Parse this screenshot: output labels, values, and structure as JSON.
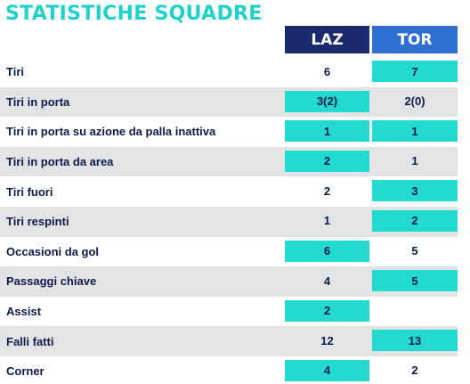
{
  "title": "STATISTICHE SQUADRE",
  "teams": {
    "home": {
      "label": "LAZ",
      "color": "#1a2a6c"
    },
    "away": {
      "label": "TOR",
      "color": "#2f6fd1"
    }
  },
  "highlight_color": "#22dad0",
  "rows": [
    {
      "label": "Tiri",
      "home": "6",
      "away": "7",
      "winner": "away"
    },
    {
      "label": "Tiri in porta",
      "home": "3(2)",
      "away": "2(0)",
      "winner": "home"
    },
    {
      "label": "Tiri in porta su azione da palla inattiva",
      "home": "1",
      "away": "1",
      "winner": "both"
    },
    {
      "label": "Tiri in porta da area",
      "home": "2",
      "away": "1",
      "winner": "home"
    },
    {
      "label": "Tiri fuori",
      "home": "2",
      "away": "3",
      "winner": "away"
    },
    {
      "label": "Tiri respinti",
      "home": "1",
      "away": "2",
      "winner": "away"
    },
    {
      "label": "Occasioni da gol",
      "home": "6",
      "away": "5",
      "winner": "home"
    },
    {
      "label": "Passaggi chiave",
      "home": "4",
      "away": "5",
      "winner": "away"
    },
    {
      "label": "Assist",
      "home": "2",
      "away": "",
      "winner": "home"
    },
    {
      "label": "Falli fatti",
      "home": "12",
      "away": "13",
      "winner": "away"
    },
    {
      "label": "Corner",
      "home": "4",
      "away": "2",
      "winner": "home"
    }
  ]
}
